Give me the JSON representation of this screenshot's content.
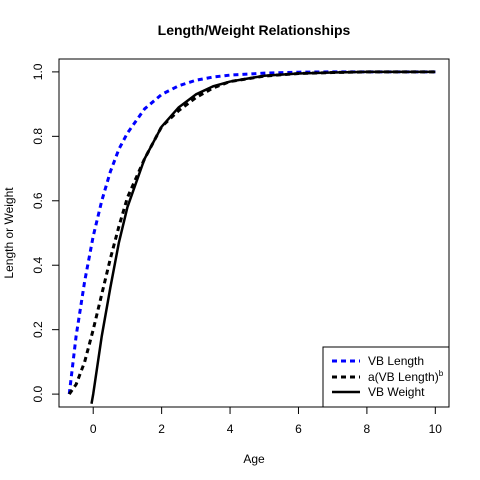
{
  "chart_data": {
    "type": "line",
    "title": "Length/Weight Relationships",
    "xlabel": "Age",
    "ylabel": "Length or Weight",
    "xlim": [
      -1.0,
      10.4
    ],
    "ylim": [
      -0.04,
      1.04
    ],
    "xticks": [
      0,
      2,
      4,
      6,
      8,
      10
    ],
    "xtick_labels": [
      "0",
      "2",
      "4",
      "6",
      "8",
      "10"
    ],
    "yticks": [
      0.0,
      0.2,
      0.4,
      0.6,
      0.8,
      1.0
    ],
    "ytick_labels": [
      "0.0",
      "0.2",
      "0.4",
      "0.6",
      "0.8",
      "1.0"
    ],
    "grid": false,
    "legend_position": "bottom-right",
    "series": [
      {
        "name": "VB Length",
        "color": "#0000ff",
        "style": "dashed",
        "x": [
          -0.7,
          -0.5,
          -0.25,
          0,
          0.25,
          0.5,
          0.75,
          1,
          1.5,
          2,
          2.5,
          3,
          3.5,
          4,
          5,
          6,
          7,
          8,
          9,
          10
        ],
        "y": [
          0.0,
          0.18,
          0.35,
          0.49,
          0.6,
          0.69,
          0.76,
          0.81,
          0.885,
          0.93,
          0.957,
          0.974,
          0.984,
          0.99,
          0.996,
          0.999,
          1.0,
          1.0,
          1.0,
          1.0
        ]
      },
      {
        "name": "a(VB Length)",
        "name_superscript": "b",
        "color": "#000000",
        "style": "dashed",
        "x": [
          -0.7,
          -0.5,
          -0.25,
          0,
          0.25,
          0.5,
          0.75,
          1,
          1.5,
          2,
          2.5,
          3,
          3.5,
          4,
          5,
          6,
          7,
          8,
          9,
          10
        ],
        "y": [
          0.0,
          0.03,
          0.1,
          0.2,
          0.31,
          0.42,
          0.52,
          0.61,
          0.73,
          0.83,
          0.88,
          0.92,
          0.95,
          0.97,
          0.987,
          0.995,
          0.998,
          1.0,
          1.0,
          1.0
        ]
      },
      {
        "name": "VB Weight",
        "color": "#000000",
        "style": "solid",
        "x": [
          -0.05,
          0,
          0.25,
          0.5,
          0.75,
          1,
          1.5,
          2,
          2.5,
          3,
          3.5,
          4,
          5,
          6,
          7,
          8,
          9,
          10
        ],
        "y": [
          -0.03,
          0.0,
          0.18,
          0.33,
          0.47,
          0.58,
          0.73,
          0.83,
          0.89,
          0.93,
          0.955,
          0.97,
          0.988,
          0.995,
          0.998,
          1.0,
          1.0,
          1.0
        ]
      }
    ]
  }
}
